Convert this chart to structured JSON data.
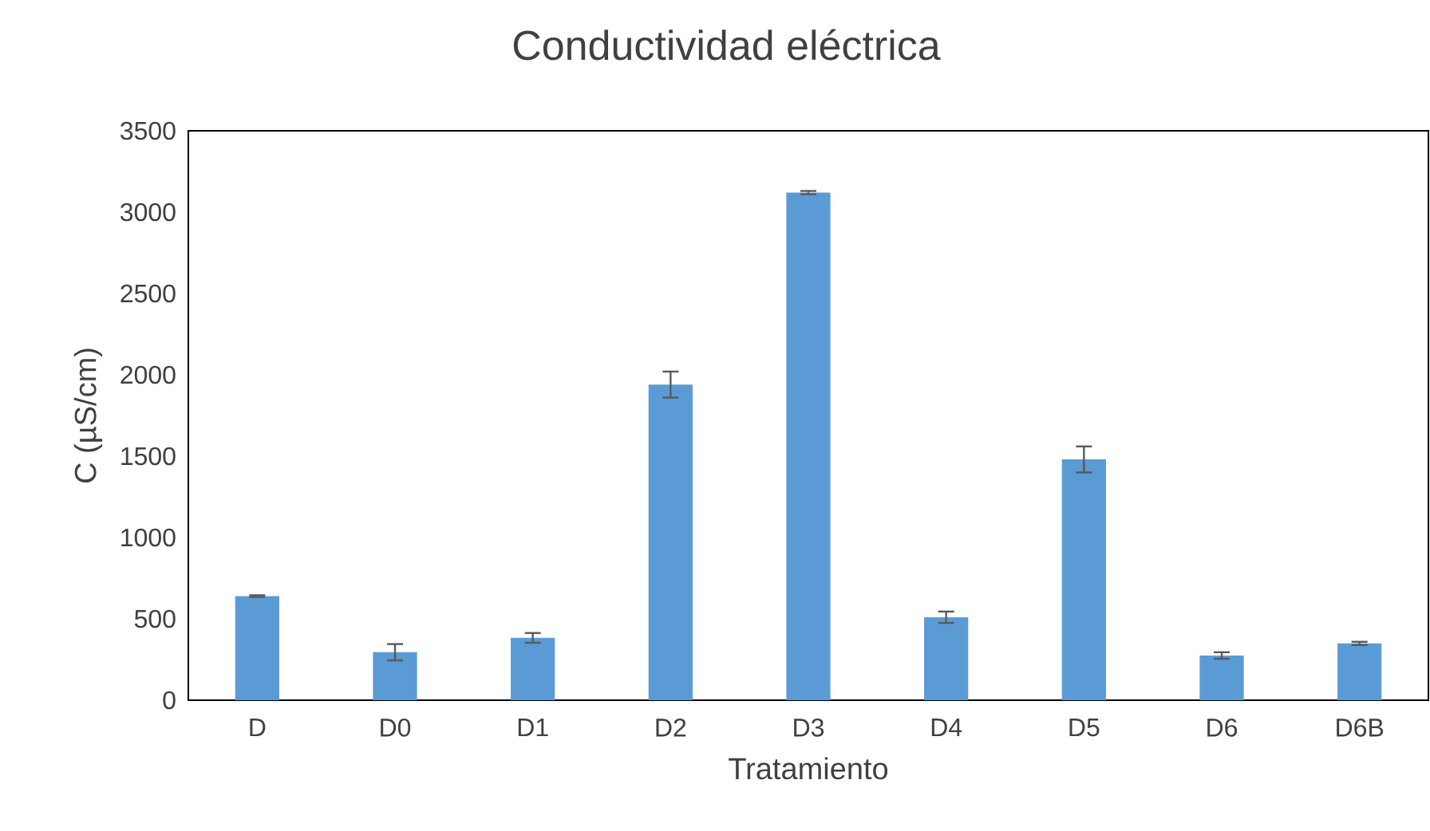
{
  "chart_data": {
    "type": "bar",
    "title": "Conductividad eléctrica",
    "xlabel": "Tratamiento",
    "ylabel": "C (µS/cm)",
    "categories": [
      "D",
      "D0",
      "D1",
      "D2",
      "D3",
      "D4",
      "D5",
      "D6",
      "D6B"
    ],
    "values": [
      640,
      295,
      383,
      1940,
      3120,
      510,
      1480,
      275,
      349
    ],
    "errors": [
      5,
      50,
      30,
      80,
      10,
      35,
      80,
      20,
      10
    ],
    "color": "#5b9bd5",
    "ylim": [
      0,
      3500
    ],
    "yticks": [
      0,
      500,
      1000,
      1500,
      2000,
      2500,
      3000,
      3500
    ]
  }
}
